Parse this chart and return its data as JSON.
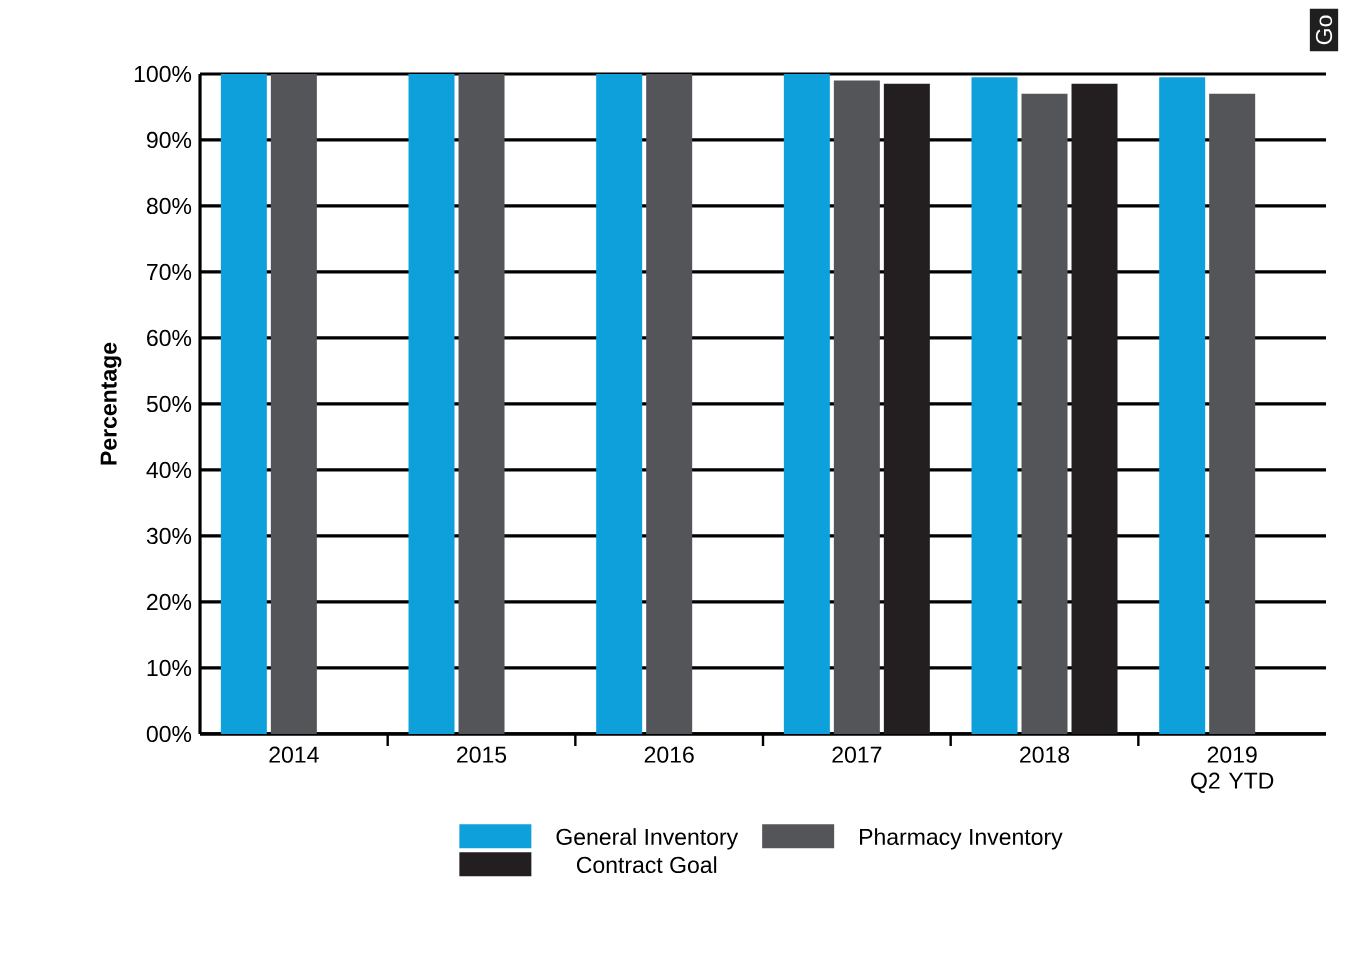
{
  "chart_data": {
    "type": "bar",
    "ylabel": "Percentage",
    "categories": [
      "2014",
      "2015",
      "2016",
      "2017",
      "2018",
      "2019 Q2 YTD"
    ],
    "series": [
      {
        "name": "General Inventory",
        "color": "#0ea0db",
        "values": [
          100,
          100,
          100,
          100,
          99.5,
          99.5
        ]
      },
      {
        "name": "Pharmacy Inventory",
        "color": "#545559",
        "values": [
          100,
          100,
          100,
          99,
          97,
          97
        ]
      },
      {
        "name": "Contract Goal",
        "color": "#231f20",
        "values": [
          null,
          null,
          null,
          98.5,
          98.5,
          null
        ]
      }
    ],
    "ylim": [
      0,
      100
    ],
    "yticks": [
      {
        "value": 0,
        "label": "00%"
      },
      {
        "value": 10,
        "label": "10%"
      },
      {
        "value": 20,
        "label": "20%"
      },
      {
        "value": 30,
        "label": "30%"
      },
      {
        "value": 40,
        "label": "40%"
      },
      {
        "value": 50,
        "label": "50%"
      },
      {
        "value": 60,
        "label": "60%"
      },
      {
        "value": 70,
        "label": "70%"
      },
      {
        "value": 80,
        "label": "80%"
      },
      {
        "value": 90,
        "label": "90%"
      },
      {
        "value": 100,
        "label": "100%"
      }
    ],
    "grid": "y",
    "legend": "bottom",
    "annotations": [
      "Go"
    ]
  }
}
